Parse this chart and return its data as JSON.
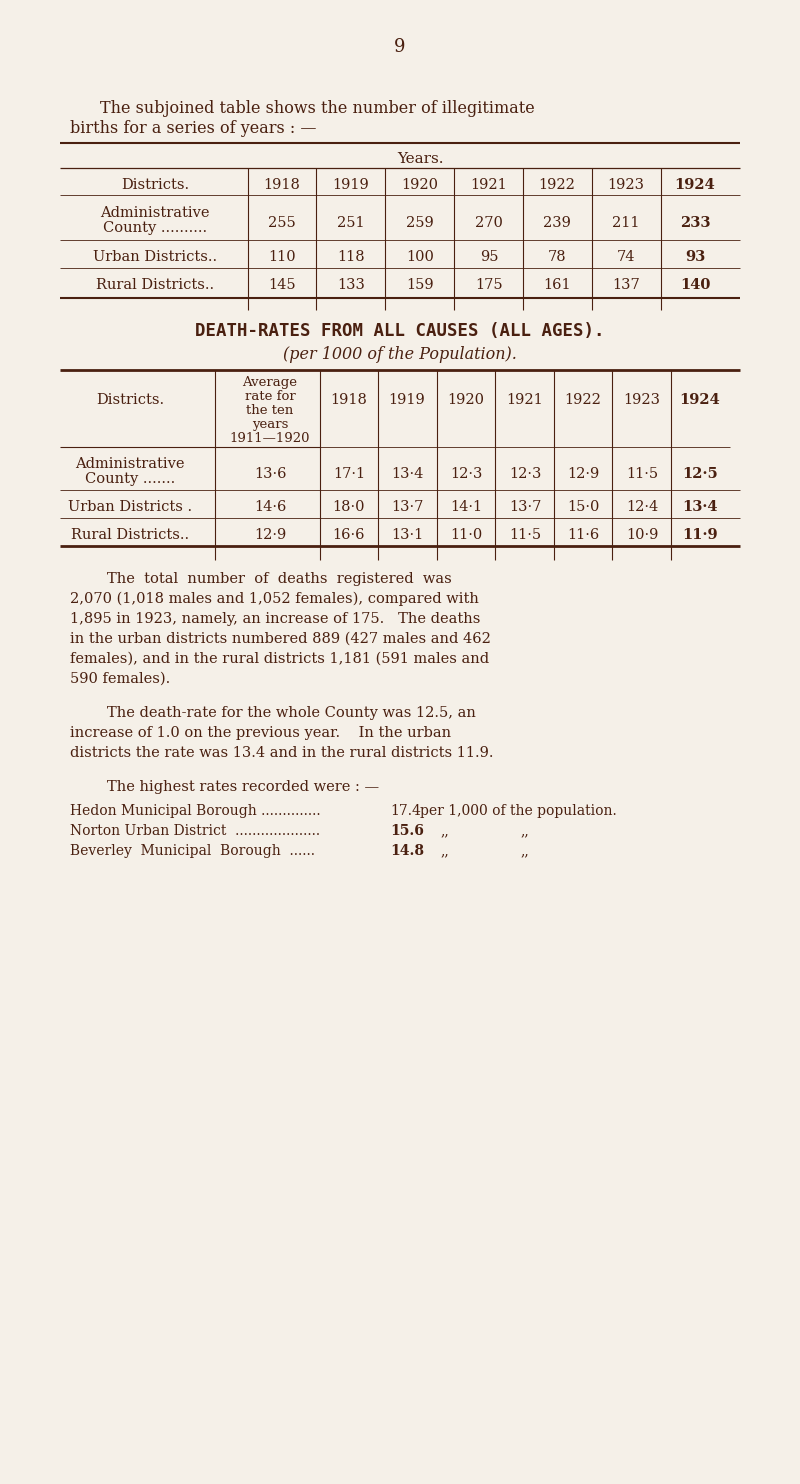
{
  "bg_color": "#f5f0e8",
  "text_color": "#4a2010",
  "page_number": "9",
  "table1_years_header": "Years.",
  "table1_col_headers": [
    "Districts.",
    "1918",
    "1919",
    "1920",
    "1921",
    "1922",
    "1923",
    "1924"
  ],
  "table1_row1_label1": "Administrative",
  "table1_row1_label2": "County ..........",
  "table1_row1_vals": [
    "255",
    "251",
    "259",
    "270",
    "239",
    "211",
    "233"
  ],
  "table1_row2_label": "Urban Districts..",
  "table1_row2_vals": [
    "110",
    "118",
    "100",
    "95",
    "78",
    "74",
    "93"
  ],
  "table1_row3_label": "Rural Districts..",
  "table1_row3_vals": [
    "145",
    "133",
    "159",
    "175",
    "161",
    "137",
    "140"
  ],
  "section2_title": "DEATH-RATES FROM ALL CAUSES (ALL AGES).",
  "section2_subtitle": "(per 1000 of the Population).",
  "table2_avg_lines": [
    "Average",
    "rate for",
    "the ten",
    "years",
    "1911—1920"
  ],
  "table2_years": [
    "1918",
    "1919",
    "1920",
    "1921",
    "1922",
    "1923",
    "1924"
  ],
  "table2_row1_l1": "Administrative",
  "table2_row1_l2": "County .......",
  "table2_row1_vals": [
    "13·6",
    "17·1",
    "13·4",
    "12·3",
    "12·3",
    "12·9",
    "11·5",
    "12·5"
  ],
  "table2_row2_label": "Urban Districts .",
  "table2_row2_vals": [
    "14·6",
    "18·0",
    "13·7",
    "14·1",
    "13·7",
    "15·0",
    "12·4",
    "13·4"
  ],
  "table2_row3_label": "Rural Districts..",
  "table2_row3_vals": [
    "12·9",
    "16·6",
    "13·1",
    "11·0",
    "11·5",
    "11·6",
    "10·9",
    "11·9"
  ],
  "para1_lines": [
    "        The  total  number  of  deaths  registered  was",
    "2,070 (1,018 males and 1,052 females), compared with",
    "1,895 in 1923, namely, an increase of 175.   The deaths",
    "in the urban districts numbered 889 (427 males and 462",
    "females), and in the rural districts 1,181 (591 males and",
    "590 females)."
  ],
  "para2_lines": [
    "        The death-rate for the whole County was 12.5, an",
    "increase of 1.0 on the previous year.    In the urban",
    "districts the rate was 13.4 and in the rural districts 11.9."
  ],
  "para3_intro": "        The highest rates recorded were : —",
  "hr_labels": [
    "Hedon Municipal Borough ..............",
    "Norton Urban District  ....................",
    "Beverley  Municipal  Borough  ......"
  ],
  "hr_values": [
    "17.4",
    "15.6",
    "14.8"
  ],
  "hr_units": [
    "per 1,000 of the population.",
    ",,               ,,",
    ",,               ,,"
  ]
}
